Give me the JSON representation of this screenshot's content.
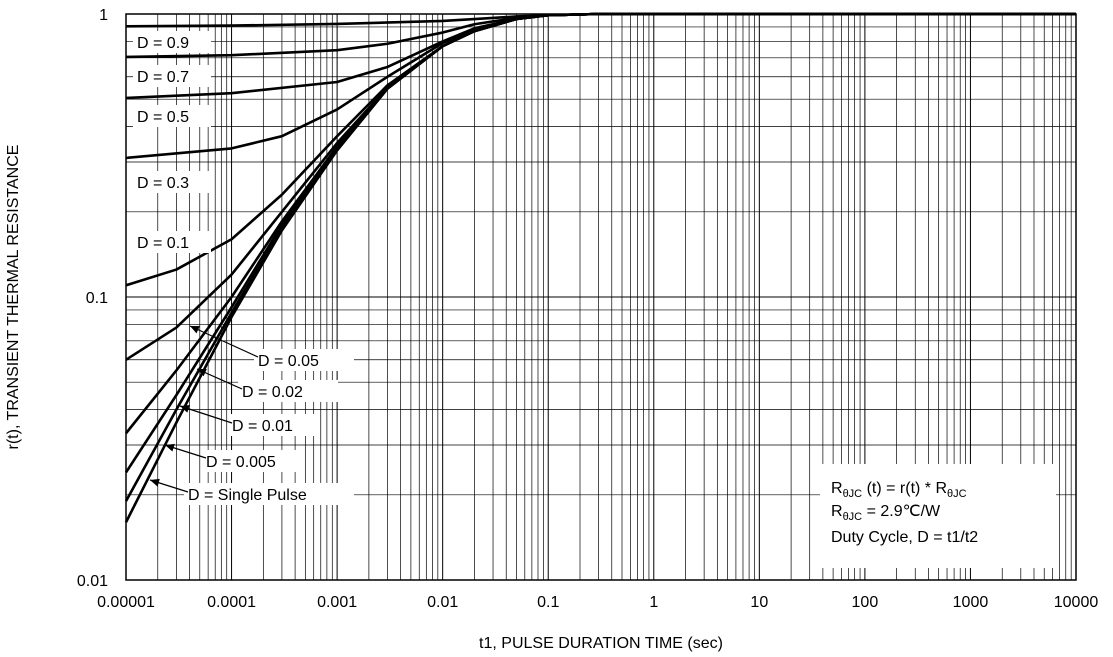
{
  "chart_data": {
    "type": "line",
    "xlabel": "t1, PULSE DURATION TIME (sec)",
    "ylabel": "r(t), TRANSIENT THERMAL RESISTANCE",
    "xscale": "log",
    "yscale": "log",
    "xlim": [
      1e-05,
      10000
    ],
    "ylim": [
      0.01,
      1
    ],
    "grid": true,
    "x_ticks": [
      "0.00001",
      "0.0001",
      "0.001",
      "0.01",
      "0.1",
      "1",
      "10",
      "100",
      "1000",
      "10000"
    ],
    "y_ticks": [
      "0.01",
      "0.1",
      "1"
    ],
    "line_color": "#000000",
    "series": [
      {
        "name": "D = 0.9",
        "x": [
          1e-05,
          0.0001,
          0.001,
          0.01,
          0.02,
          0.05,
          0.1,
          0.3,
          10000
        ],
        "y": [
          0.905,
          0.91,
          0.922,
          0.945,
          0.96,
          0.98,
          0.99,
          1.0,
          1.0
        ]
      },
      {
        "name": "D = 0.7",
        "x": [
          1e-05,
          0.0001,
          0.001,
          0.003,
          0.01,
          0.02,
          0.05,
          0.1,
          0.3,
          10000
        ],
        "y": [
          0.705,
          0.715,
          0.745,
          0.785,
          0.86,
          0.92,
          0.97,
          0.99,
          1.0,
          1.0
        ]
      },
      {
        "name": "D = 0.5",
        "x": [
          1e-05,
          0.0001,
          0.001,
          0.003,
          0.01,
          0.02,
          0.05,
          0.1,
          0.3,
          10000
        ],
        "y": [
          0.505,
          0.525,
          0.575,
          0.65,
          0.8,
          0.89,
          0.96,
          0.99,
          1.0,
          1.0
        ]
      },
      {
        "name": "D = 0.3",
        "x": [
          1e-05,
          0.0001,
          0.0003,
          0.001,
          0.003,
          0.01,
          0.02,
          0.05,
          0.1,
          0.3,
          10000
        ],
        "y": [
          0.31,
          0.335,
          0.37,
          0.46,
          0.6,
          0.79,
          0.88,
          0.96,
          0.99,
          1.0,
          1.0
        ]
      },
      {
        "name": "D = 0.1",
        "x": [
          1e-05,
          3e-05,
          0.0001,
          0.0003,
          0.001,
          0.003,
          0.01,
          0.02,
          0.05,
          0.1,
          0.3,
          10000
        ],
        "y": [
          0.11,
          0.125,
          0.16,
          0.23,
          0.37,
          0.56,
          0.77,
          0.87,
          0.96,
          0.99,
          1.0,
          1.0
        ]
      },
      {
        "name": "D = 0.05",
        "x": [
          1e-05,
          3e-05,
          0.0001,
          0.0003,
          0.001,
          0.003,
          0.01,
          0.02,
          0.05,
          0.1,
          0.3,
          10000
        ],
        "y": [
          0.06,
          0.078,
          0.12,
          0.2,
          0.35,
          0.55,
          0.77,
          0.87,
          0.96,
          0.99,
          1.0,
          1.0
        ]
      },
      {
        "name": "D = 0.02",
        "x": [
          1e-05,
          3e-05,
          0.0001,
          0.0003,
          0.001,
          0.003,
          0.01,
          0.02,
          0.05,
          0.1,
          0.3,
          10000
        ],
        "y": [
          0.033,
          0.055,
          0.1,
          0.185,
          0.34,
          0.55,
          0.77,
          0.87,
          0.96,
          0.99,
          1.0,
          1.0
        ]
      },
      {
        "name": "D = 0.01",
        "x": [
          1e-05,
          3e-05,
          0.0001,
          0.0003,
          0.001,
          0.003,
          0.01,
          0.02,
          0.05,
          0.1,
          0.3,
          10000
        ],
        "y": [
          0.024,
          0.045,
          0.092,
          0.18,
          0.335,
          0.545,
          0.77,
          0.87,
          0.96,
          0.99,
          1.0,
          1.0
        ]
      },
      {
        "name": "D = 0.005",
        "x": [
          1e-05,
          3e-05,
          0.0001,
          0.0003,
          0.001,
          0.003,
          0.01,
          0.02,
          0.05,
          0.1,
          0.3,
          10000
        ],
        "y": [
          0.019,
          0.04,
          0.088,
          0.175,
          0.33,
          0.545,
          0.77,
          0.87,
          0.96,
          0.99,
          1.0,
          1.0
        ]
      },
      {
        "name": "D = Single Pulse",
        "x": [
          1e-05,
          3e-05,
          0.0001,
          0.0003,
          0.001,
          0.003,
          0.01,
          0.02,
          0.05,
          0.1,
          0.3,
          10000
        ],
        "y": [
          0.016,
          0.036,
          0.085,
          0.172,
          0.33,
          0.545,
          0.77,
          0.87,
          0.96,
          0.99,
          1.0,
          1.0
        ]
      }
    ],
    "annotations": {
      "line1": {
        "main": "R",
        "sub": "θJC",
        "mid": " (t) = r(t) * R",
        "sub2": "θJC"
      },
      "line2": {
        "main": "R",
        "sub": "θJC",
        "rest": " = 2.9℃/W"
      },
      "line3": "Duty Cycle, D = t1/t2"
    }
  }
}
